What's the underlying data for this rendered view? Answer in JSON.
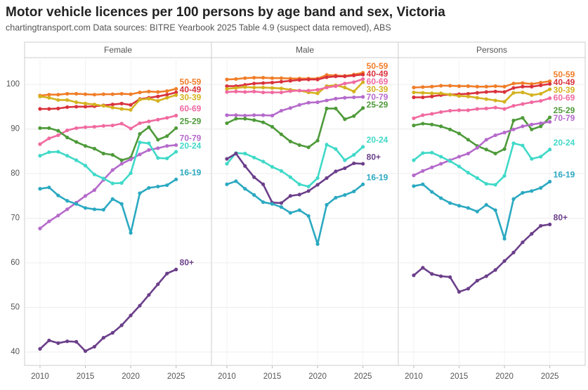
{
  "title": "Motor vehicle licences per 100 persons by age band and sex, Victoria",
  "subtitle": "chartingtransport.com  Data sources: BITRE Yearbook 2025 Table 4.9 (suspect data removed), ABS",
  "chart_data": [
    {
      "type": "line",
      "title": "Female",
      "x": [
        2010,
        2011,
        2012,
        2013,
        2014,
        2015,
        2016,
        2017,
        2018,
        2019,
        2020,
        2021,
        2022,
        2023,
        2024,
        2025
      ],
      "xlim": [
        2008.3,
        2028.9
      ],
      "xticks": [
        2010,
        2015,
        2020,
        2025
      ],
      "ylim": [
        37,
        106
      ],
      "yticks": [
        40,
        50,
        60,
        70,
        80,
        90,
        100
      ],
      "grid": true,
      "series": [
        {
          "name": "50-59",
          "color": "#f07d28",
          "values": [
            97.5,
            97.7,
            97.7,
            97.9,
            97.9,
            97.8,
            97.7,
            97.8,
            97.8,
            97.9,
            97.8,
            98.2,
            98.4,
            98.3,
            98.5,
            99
          ]
        },
        {
          "name": "40-49",
          "color": "#d9323c",
          "values": [
            94.5,
            94.5,
            94.6,
            94.9,
            95,
            95,
            95.1,
            95.3,
            95.5,
            95.7,
            95.4,
            96.7,
            97,
            97.3,
            97.7,
            98.2
          ]
        },
        {
          "name": "30-39",
          "color": "#d4b21f",
          "values": [
            97.3,
            97,
            96.5,
            96.5,
            96,
            95.7,
            95.5,
            95.2,
            94.8,
            94.5,
            94.3,
            96.6,
            96.8,
            96.3,
            97,
            97.6
          ]
        },
        {
          "name": "60-69",
          "color": "#f06aa0",
          "values": [
            86.6,
            87.9,
            88.6,
            89.7,
            90.2,
            90.4,
            90.5,
            90.7,
            90.8,
            91.2,
            90.1,
            91.3,
            91.7,
            92.1,
            92.5,
            93
          ]
        },
        {
          "name": "25-29",
          "color": "#4e9a3a",
          "values": [
            90.2,
            90.2,
            89.6,
            88.1,
            87.1,
            86.2,
            85.6,
            84.5,
            84.2,
            83,
            83.6,
            88.9,
            90.4,
            87.6,
            88.4,
            90.2
          ]
        },
        {
          "name": "70-79",
          "color": "#b56acb",
          "values": [
            67.7,
            69.3,
            70.6,
            72,
            73.5,
            75,
            76.3,
            78.6,
            80.8,
            82.2,
            83.2,
            84.3,
            85.3,
            85.7,
            86.2,
            86.4
          ]
        },
        {
          "name": "20-24",
          "color": "#40d9c8",
          "values": [
            84,
            84.8,
            84.9,
            84,
            83,
            81.8,
            79.8,
            78.9,
            77.8,
            77.9,
            80.1,
            87,
            86.8,
            83.5,
            83.4,
            84.9
          ]
        },
        {
          "name": "16-19",
          "color": "#2ba9c1",
          "values": [
            76.6,
            76.9,
            75.1,
            73.9,
            73.2,
            72.3,
            72,
            71.9,
            74.3,
            73.2,
            66.7,
            75.6,
            76.8,
            77.1,
            77.4,
            78.7
          ]
        },
        {
          "name": "80+",
          "color": "#6b3f8a",
          "values": [
            40.7,
            42.6,
            42,
            42.4,
            42.3,
            40.2,
            41.2,
            43.2,
            44.3,
            46,
            48.2,
            50.4,
            52.8,
            55.2,
            57.6,
            58.5
          ]
        }
      ]
    },
    {
      "type": "line",
      "title": "Male",
      "x": [
        2010,
        2011,
        2012,
        2013,
        2014,
        2015,
        2016,
        2017,
        2018,
        2019,
        2020,
        2021,
        2022,
        2023,
        2024,
        2025
      ],
      "xlim": [
        2008.3,
        2028.9
      ],
      "xticks": [
        2010,
        2015,
        2020,
        2025
      ],
      "ylim": [
        37,
        106
      ],
      "yticks": [
        40,
        50,
        60,
        70,
        80,
        90,
        100
      ],
      "grid": true,
      "series": [
        {
          "name": "50-59",
          "color": "#f07d28",
          "values": [
            101.1,
            101.2,
            101.4,
            101.5,
            101.5,
            101.4,
            101.4,
            101.3,
            101.3,
            101.3,
            101.3,
            102.1,
            102,
            101.9,
            102.2,
            102.6
          ]
        },
        {
          "name": "40-49",
          "color": "#d9323c",
          "values": [
            99.6,
            99.6,
            99.9,
            100.2,
            100.3,
            100.4,
            100.6,
            100.8,
            101,
            101.1,
            101.1,
            101.6,
            101.8,
            101.8,
            102,
            102.2
          ]
        },
        {
          "name": "30-39",
          "color": "#d4b21f",
          "values": [
            99,
            99.2,
            99.4,
            99.3,
            99.3,
            99.2,
            99.1,
            98.8,
            98.6,
            98.2,
            98,
            99.6,
            99.8,
            99.3,
            98.4,
            100.5
          ]
        },
        {
          "name": "60-69",
          "color": "#f06aa0",
          "values": [
            98.3,
            98.4,
            98.3,
            98.4,
            98.2,
            98.2,
            98.2,
            98.5,
            98.6,
            98.6,
            98.8,
            99.3,
            99.6,
            100.2,
            100.5,
            101.2
          ]
        },
        {
          "name": "70-79",
          "color": "#b56acb",
          "values": [
            93.1,
            93.1,
            93,
            93.1,
            93.1,
            93,
            94.1,
            94.7,
            95.4,
            95.9,
            96,
            96.4,
            96.8,
            97,
            97.1,
            97.2
          ]
        },
        {
          "name": "25-29",
          "color": "#4e9a3a",
          "values": [
            91.3,
            92.3,
            92.3,
            92,
            91.5,
            90.5,
            88.8,
            87.2,
            86.4,
            85.9,
            87.4,
            94.6,
            94.6,
            92.2,
            92.9,
            94.7
          ]
        },
        {
          "name": "20-24",
          "color": "#40d9c8",
          "values": [
            82.2,
            84.6,
            84.5,
            83.6,
            82.7,
            81.5,
            80.6,
            79.2,
            77.6,
            77.1,
            79,
            86.5,
            85.5,
            83,
            84.2,
            86
          ]
        },
        {
          "name": "80+",
          "color": "#6b3f8a",
          "values": [
            83.3,
            84.5,
            81.7,
            79.2,
            77.6,
            73.5,
            73.4,
            75,
            75.3,
            76.1,
            77.5,
            79,
            80.5,
            81.2,
            82.3,
            82.2
          ]
        },
        {
          "name": "16-19",
          "color": "#2ba9c1",
          "values": [
            77.6,
            78.3,
            76.6,
            75.2,
            73.6,
            73.2,
            72.5,
            71.2,
            71.8,
            70.5,
            64.2,
            73,
            74.6,
            75.2,
            76,
            77.6
          ]
        }
      ]
    },
    {
      "type": "line",
      "title": "Persons",
      "x": [
        2010,
        2011,
        2012,
        2013,
        2014,
        2015,
        2016,
        2017,
        2018,
        2019,
        2020,
        2021,
        2022,
        2023,
        2024,
        2025
      ],
      "xlim": [
        2008.3,
        2028.9
      ],
      "xticks": [
        2010,
        2015,
        2020,
        2025
      ],
      "ylim": [
        37,
        106
      ],
      "yticks": [
        40,
        50,
        60,
        70,
        80,
        90,
        100
      ],
      "grid": true,
      "series": [
        {
          "name": "50-59",
          "color": "#f07d28",
          "values": [
            99.3,
            99.4,
            99.5,
            99.7,
            99.7,
            99.6,
            99.6,
            99.5,
            99.5,
            99.6,
            99.5,
            100.2,
            100.3,
            100.1,
            100.4,
            100.7
          ]
        },
        {
          "name": "40-49",
          "color": "#d9323c",
          "values": [
            97.1,
            97.1,
            97.3,
            97.6,
            97.7,
            97.8,
            97.9,
            98.1,
            98.3,
            98.4,
            98.3,
            99.2,
            99.5,
            99.5,
            99.8,
            100.1
          ]
        },
        {
          "name": "30-39",
          "color": "#d4b21f",
          "values": [
            98.2,
            98.1,
            98,
            98,
            97.7,
            97.4,
            97.3,
            97,
            96.7,
            96.4,
            96.1,
            98.1,
            98.2,
            97.6,
            97.9,
            98.9
          ]
        },
        {
          "name": "60-69",
          "color": "#f06aa0",
          "values": [
            92.4,
            93.1,
            93.4,
            93.8,
            94.1,
            94.2,
            94.2,
            94.5,
            94.6,
            94.8,
            94.5,
            95.2,
            95.6,
            96,
            96.3,
            96.9
          ]
        },
        {
          "name": "25-29",
          "color": "#4e9a3a",
          "values": [
            90.8,
            91.2,
            91,
            90.6,
            89.9,
            89,
            87.6,
            86.2,
            85.4,
            84.5,
            85.5,
            91.9,
            92.5,
            89.9,
            90.6,
            92.6
          ]
        },
        {
          "name": "70-79",
          "color": "#b56acb",
          "values": [
            79.6,
            80.6,
            81.4,
            82.2,
            83,
            83.8,
            84.5,
            85.8,
            87.6,
            88.6,
            89.2,
            89.9,
            90.6,
            91,
            91.3,
            91.6
          ]
        },
        {
          "name": "20-24",
          "color": "#40d9c8",
          "values": [
            83,
            84.6,
            84.7,
            83.8,
            82.8,
            81.6,
            80.2,
            79,
            77.7,
            77.5,
            79.5,
            86.8,
            86.3,
            83.3,
            83.8,
            85.4
          ]
        },
        {
          "name": "16-19",
          "color": "#2ba9c1",
          "values": [
            77.2,
            77.6,
            75.9,
            74.5,
            73.4,
            72.8,
            72.3,
            71.5,
            73,
            71.8,
            65.4,
            74.3,
            75.7,
            76.1,
            76.8,
            78.2
          ]
        },
        {
          "name": "80+",
          "color": "#6b3f8a",
          "values": [
            57.2,
            58.9,
            57.5,
            57,
            56.8,
            53.5,
            54.2,
            56,
            57,
            58.4,
            60.4,
            62.3,
            64.6,
            66.5,
            68.3,
            68.6
          ]
        }
      ]
    }
  ]
}
